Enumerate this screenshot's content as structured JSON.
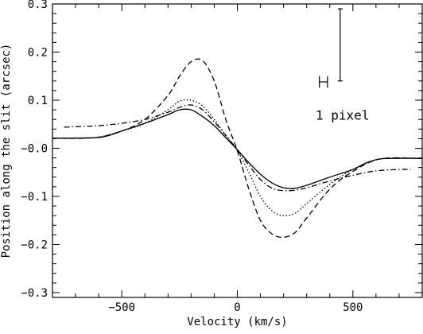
{
  "chart_data": {
    "type": "line",
    "title": "",
    "xlabel": "Velocity (km/s)",
    "ylabel": "Position along the slit (arcsec)",
    "xlim": [
      -800,
      800
    ],
    "ylim": [
      -0.31,
      0.3
    ],
    "grid": false,
    "legend": "none",
    "x_ticks": [
      -500,
      0,
      500
    ],
    "x_tick_labels": [
      "−500",
      "0",
      "500"
    ],
    "y_ticks": [
      -0.3,
      -0.2,
      -0.1,
      0.0,
      0.1,
      0.2,
      0.3
    ],
    "y_tick_labels": [
      "−0.3",
      "−0.2",
      "−0.1",
      "−0.0",
      "0.1",
      "0.2",
      "0.3"
    ],
    "series": [
      {
        "style": "solid",
        "x": [
          -800,
          -620,
          -560,
          -500,
          -400,
          -300,
          -250,
          -200,
          -150,
          -100,
          -50,
          0,
          50,
          100,
          150,
          200,
          250,
          300,
          400,
          500,
          560,
          620,
          700,
          800
        ],
        "y": [
          0.021,
          0.022,
          0.026,
          0.036,
          0.052,
          0.07,
          0.08,
          0.08,
          0.066,
          0.047,
          0.022,
          -0.003,
          -0.03,
          -0.054,
          -0.072,
          -0.082,
          -0.083,
          -0.077,
          -0.06,
          -0.044,
          -0.03,
          -0.022,
          -0.021,
          -0.021
        ]
      },
      {
        "style": "dash-dot",
        "x": [
          -750,
          -600,
          -500,
          -400,
          -300,
          -250,
          -200,
          -150,
          -100,
          -50,
          0,
          50,
          100,
          150,
          200,
          250,
          300,
          400,
          500,
          600,
          700,
          750
        ],
        "y": [
          0.044,
          0.047,
          0.052,
          0.06,
          0.075,
          0.085,
          0.09,
          0.08,
          0.055,
          0.027,
          -0.003,
          -0.035,
          -0.065,
          -0.083,
          -0.088,
          -0.087,
          -0.082,
          -0.068,
          -0.056,
          -0.047,
          -0.044,
          -0.044
        ]
      },
      {
        "style": "dotted",
        "x": [
          -800,
          -620,
          -500,
          -400,
          -300,
          -250,
          -200,
          -150,
          -100,
          -50,
          0,
          50,
          100,
          150,
          200,
          250,
          300,
          400,
          500,
          620,
          800
        ],
        "y": [
          0.021,
          0.022,
          0.036,
          0.052,
          0.08,
          0.098,
          0.1,
          0.088,
          0.06,
          0.026,
          -0.005,
          -0.05,
          -0.1,
          -0.13,
          -0.14,
          -0.135,
          -0.115,
          -0.075,
          -0.044,
          -0.022,
          -0.021
        ]
      },
      {
        "style": "dashed",
        "x": [
          -800,
          -620,
          -500,
          -400,
          -300,
          -250,
          -200,
          -150,
          -100,
          -50,
          0,
          50,
          100,
          150,
          200,
          250,
          300,
          400,
          500,
          620,
          800
        ],
        "y": [
          0.021,
          0.022,
          0.036,
          0.06,
          0.11,
          0.15,
          0.18,
          0.182,
          0.14,
          0.06,
          -0.005,
          -0.085,
          -0.15,
          -0.178,
          -0.185,
          -0.175,
          -0.145,
          -0.085,
          -0.048,
          -0.022,
          -0.021
        ]
      }
    ],
    "annotations": [
      {
        "text": "1 pixel",
        "x": 455,
        "y": 0.068
      }
    ],
    "pixel_scale_bars": {
      "horizontal": {
        "x_from": 355,
        "x_to": 390,
        "y": 0.138,
        "cap_height": 0.024
      },
      "vertical": {
        "x": 445,
        "y_from": 0.14,
        "y_to": 0.29,
        "cap_width": 20
      }
    }
  }
}
